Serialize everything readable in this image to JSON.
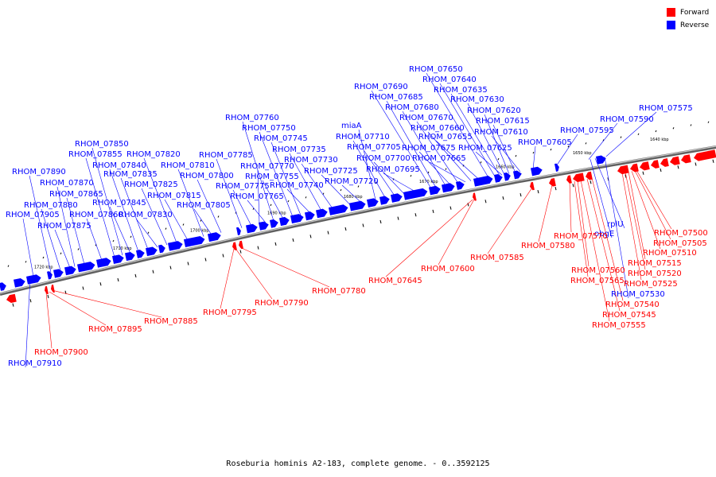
{
  "colors": {
    "forward": "#ff0000",
    "reverse": "#0000ff",
    "backbone": "#808080"
  },
  "legend": [
    {
      "label": "Forward",
      "color": "#ff0000"
    },
    {
      "label": "Reverse",
      "color": "#0000ff"
    }
  ],
  "caption": "Roseburia hominis A2-183, complete genome. - 0..3592125",
  "scale_ticks": [
    "1640 kbp",
    "1650 kbp",
    "1660 kbp",
    "1670 kbp",
    "1680 kbp",
    "1690 kbp",
    "1700 kbp",
    "1710 kbp",
    "1720 kbp"
  ],
  "reverse_labels": [
    "RHOM_07575",
    "RHOM_07590",
    "RHOM_07595",
    "RHOM_07605",
    "RHOM_07610",
    "RHOM_07615",
    "RHOM_07620",
    "RHOM_07625",
    "RHOM_07630",
    "RHOM_07635",
    "RHOM_07640",
    "RHOM_07650",
    "RHOM_07655",
    "RHOM_07660",
    "RHOM_07665",
    "RHOM_07670",
    "RHOM_07675",
    "RHOM_07680",
    "RHOM_07685",
    "RHOM_07690",
    "RHOM_07695",
    "RHOM_07700",
    "RHOM_07705",
    "RHOM_07710",
    "miaA",
    "RHOM_07720",
    "RHOM_07725",
    "RHOM_07730",
    "RHOM_07735",
    "RHOM_07740",
    "RHOM_07745",
    "RHOM_07750",
    "RHOM_07755",
    "RHOM_07760",
    "RHOM_07765",
    "RHOM_07770",
    "RHOM_07775",
    "RHOM_07785",
    "RHOM_07800",
    "RHOM_07805",
    "RHOM_07810",
    "RHOM_07815",
    "RHOM_07820",
    "RHOM_07825",
    "RHOM_07830",
    "RHOM_07835",
    "RHOM_07840",
    "RHOM_07845",
    "RHOM_07850",
    "RHOM_07855",
    "RHOM_07860",
    "RHOM_07865",
    "RHOM_07870",
    "RHOM_07875",
    "RHOM_07880",
    "RHOM_07890",
    "RHOM_07905",
    "RHOM_07910",
    "rplU",
    "obgE",
    "RHOM_07530"
  ],
  "forward_labels": [
    "RHOM_07500",
    "RHOM_07505",
    "RHOM_07510",
    "RHOM_07515",
    "RHOM_07520",
    "RHOM_07525",
    "RHOM_07540",
    "RHOM_07545",
    "RHOM_07555",
    "RHOM_07560",
    "RHOM_07565",
    "RHOM_07570",
    "RHOM_07580",
    "RHOM_07585",
    "RHOM_07600",
    "RHOM_07645",
    "RHOM_07780",
    "RHOM_07790",
    "RHOM_07795",
    "RHOM_07885",
    "RHOM_07895",
    "RHOM_07900"
  ]
}
